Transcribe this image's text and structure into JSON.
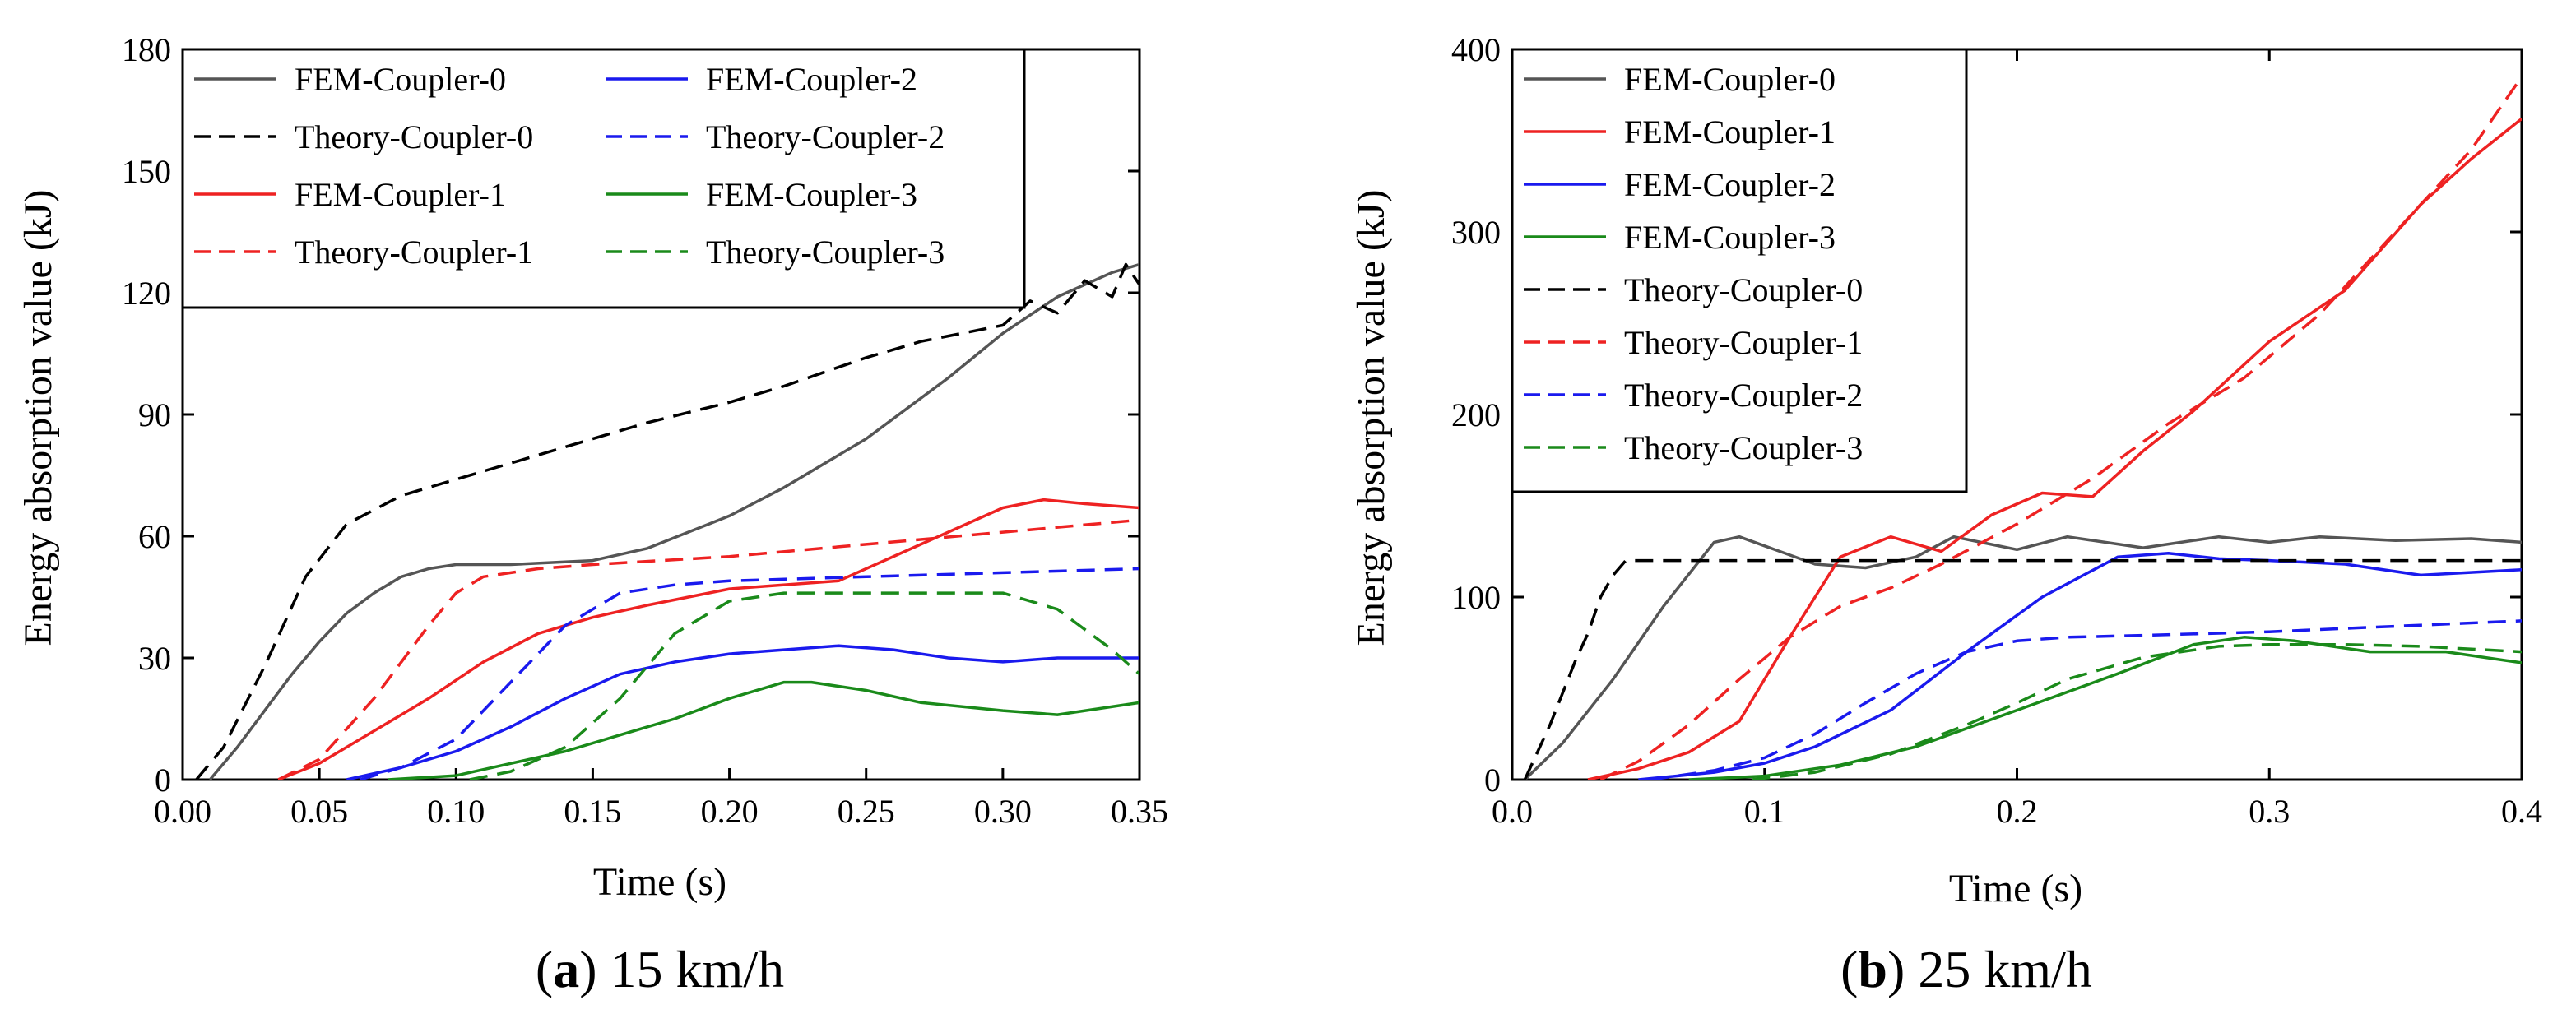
{
  "chart_data": [
    {
      "type": "line",
      "panel_label": "a",
      "caption": "15 km/h",
      "xlabel": "Time (s)",
      "ylabel": "Energy absorption value (kJ)",
      "xlim": [
        0.0,
        0.35
      ],
      "ylim": [
        0,
        180
      ],
      "xticks": [
        0.0,
        0.05,
        0.1,
        0.15,
        0.2,
        0.25,
        0.3,
        0.35
      ],
      "xtick_labels": [
        "0.00",
        "0.05",
        "0.10",
        "0.15",
        "0.20",
        "0.25",
        "0.30",
        "0.35"
      ],
      "yticks": [
        0,
        30,
        60,
        90,
        120,
        150,
        180
      ],
      "ytick_labels": [
        "0",
        "30",
        "60",
        "90",
        "120",
        "150",
        "180"
      ],
      "legend_position": "top-left",
      "legend_columns": 2,
      "series": [
        {
          "name": "FEM-Coupler-0",
          "color": "#555555",
          "dash": "solid",
          "x": [
            0.01,
            0.02,
            0.03,
            0.04,
            0.05,
            0.06,
            0.07,
            0.08,
            0.09,
            0.1,
            0.12,
            0.15,
            0.17,
            0.2,
            0.22,
            0.25,
            0.28,
            0.3,
            0.32,
            0.34,
            0.35
          ],
          "y": [
            0,
            8,
            17,
            26,
            34,
            41,
            46,
            50,
            52,
            53,
            53,
            54,
            57,
            65,
            72,
            84,
            99,
            110,
            119,
            125,
            127
          ]
        },
        {
          "name": "Theory-Coupler-0",
          "color": "#000000",
          "dash": "dashed",
          "x": [
            0.005,
            0.015,
            0.03,
            0.045,
            0.06,
            0.08,
            0.1,
            0.12,
            0.15,
            0.17,
            0.2,
            0.22,
            0.25,
            0.27,
            0.3,
            0.31,
            0.32,
            0.33,
            0.34,
            0.345,
            0.35
          ],
          "y": [
            0,
            8,
            28,
            50,
            63,
            70,
            74,
            78,
            84,
            88,
            93,
            97,
            104,
            108,
            112,
            118,
            115,
            123,
            119,
            127,
            122
          ]
        },
        {
          "name": "FEM-Coupler-1",
          "color": "#ee2222",
          "dash": "solid",
          "x": [
            0.035,
            0.05,
            0.07,
            0.09,
            0.11,
            0.13,
            0.15,
            0.17,
            0.2,
            0.24,
            0.27,
            0.3,
            0.315,
            0.33,
            0.35
          ],
          "y": [
            0,
            4,
            12,
            20,
            29,
            36,
            40,
            43,
            47,
            49,
            58,
            67,
            69,
            68,
            67
          ]
        },
        {
          "name": "Theory-Coupler-1",
          "color": "#ee2222",
          "dash": "dashed",
          "x": [
            0.035,
            0.05,
            0.07,
            0.09,
            0.1,
            0.11,
            0.13,
            0.15,
            0.2,
            0.25,
            0.3,
            0.35
          ],
          "y": [
            0,
            5,
            20,
            38,
            46,
            50,
            52,
            53,
            55,
            58,
            61,
            64
          ]
        },
        {
          "name": "FEM-Coupler-2",
          "color": "#1a1aee",
          "dash": "solid",
          "x": [
            0.06,
            0.08,
            0.1,
            0.12,
            0.14,
            0.16,
            0.18,
            0.2,
            0.22,
            0.24,
            0.26,
            0.28,
            0.3,
            0.32,
            0.35
          ],
          "y": [
            0,
            3,
            7,
            13,
            20,
            26,
            29,
            31,
            32,
            33,
            32,
            30,
            29,
            30,
            30
          ]
        },
        {
          "name": "Theory-Coupler-2",
          "color": "#1a1aee",
          "dash": "dashed",
          "x": [
            0.065,
            0.08,
            0.1,
            0.12,
            0.14,
            0.16,
            0.18,
            0.2,
            0.25,
            0.3,
            0.35
          ],
          "y": [
            0,
            3,
            10,
            24,
            38,
            46,
            48,
            49,
            50,
            51,
            52
          ]
        },
        {
          "name": "FEM-Coupler-3",
          "color": "#1a8a1a",
          "dash": "solid",
          "x": [
            0.075,
            0.1,
            0.12,
            0.14,
            0.16,
            0.18,
            0.2,
            0.22,
            0.23,
            0.25,
            0.27,
            0.3,
            0.32,
            0.35
          ],
          "y": [
            0,
            1,
            4,
            7,
            11,
            15,
            20,
            24,
            24,
            22,
            19,
            17,
            16,
            19
          ]
        },
        {
          "name": "Theory-Coupler-3",
          "color": "#1a8a1a",
          "dash": "dashed",
          "x": [
            0.105,
            0.12,
            0.14,
            0.16,
            0.18,
            0.2,
            0.22,
            0.25,
            0.28,
            0.3,
            0.32,
            0.34,
            0.35
          ],
          "y": [
            0,
            2,
            8,
            20,
            36,
            44,
            46,
            46,
            46,
            46,
            42,
            32,
            26
          ]
        }
      ]
    },
    {
      "type": "line",
      "panel_label": "b",
      "caption": "25 km/h",
      "xlabel": "Time (s)",
      "ylabel": "Energy absorption value (kJ)",
      "xlim": [
        0.0,
        0.4
      ],
      "ylim": [
        0,
        400
      ],
      "xticks": [
        0.0,
        0.1,
        0.2,
        0.3,
        0.4
      ],
      "xtick_labels": [
        "0.0",
        "0.1",
        "0.2",
        "0.3",
        "0.4"
      ],
      "yticks": [
        0,
        100,
        200,
        300,
        400
      ],
      "ytick_labels": [
        "0",
        "100",
        "200",
        "300",
        "400"
      ],
      "legend_position": "top-left",
      "legend_columns": 1,
      "series": [
        {
          "name": "FEM-Coupler-0",
          "color": "#555555",
          "dash": "solid",
          "x": [
            0.005,
            0.02,
            0.04,
            0.06,
            0.08,
            0.09,
            0.1,
            0.12,
            0.14,
            0.16,
            0.175,
            0.2,
            0.22,
            0.25,
            0.28,
            0.3,
            0.32,
            0.35,
            0.38,
            0.4
          ],
          "y": [
            0,
            20,
            55,
            95,
            130,
            133,
            128,
            118,
            116,
            122,
            133,
            126,
            133,
            127,
            133,
            130,
            133,
            131,
            132,
            130
          ]
        },
        {
          "name": "FEM-Coupler-1",
          "color": "#ee2222",
          "dash": "solid",
          "x": [
            0.03,
            0.05,
            0.07,
            0.09,
            0.11,
            0.13,
            0.15,
            0.17,
            0.19,
            0.21,
            0.23,
            0.25,
            0.27,
            0.3,
            0.33,
            0.36,
            0.38,
            0.4
          ],
          "y": [
            0,
            6,
            15,
            32,
            78,
            122,
            133,
            125,
            145,
            157,
            155,
            180,
            202,
            240,
            268,
            315,
            340,
            362
          ]
        },
        {
          "name": "FEM-Coupler-2",
          "color": "#1a1aee",
          "dash": "solid",
          "x": [
            0.05,
            0.08,
            0.1,
            0.12,
            0.15,
            0.18,
            0.21,
            0.24,
            0.26,
            0.28,
            0.3,
            0.33,
            0.36,
            0.4
          ],
          "y": [
            0,
            4,
            9,
            18,
            38,
            70,
            100,
            122,
            124,
            121,
            120,
            118,
            112,
            115
          ]
        },
        {
          "name": "FEM-Coupler-3",
          "color": "#1a8a1a",
          "dash": "solid",
          "x": [
            0.07,
            0.1,
            0.13,
            0.16,
            0.2,
            0.24,
            0.27,
            0.29,
            0.31,
            0.34,
            0.37,
            0.4
          ],
          "y": [
            0,
            2,
            8,
            18,
            38,
            58,
            74,
            78,
            76,
            70,
            70,
            64
          ]
        },
        {
          "name": "Theory-Coupler-0",
          "color": "#000000",
          "dash": "dashed",
          "x": [
            0.005,
            0.015,
            0.025,
            0.03,
            0.035,
            0.04,
            0.045,
            0.1,
            0.2,
            0.3,
            0.4
          ],
          "y": [
            0,
            30,
            65,
            80,
            100,
            112,
            120,
            120,
            120,
            120,
            120
          ]
        },
        {
          "name": "Theory-Coupler-1",
          "color": "#ee2222",
          "dash": "dashed",
          "x": [
            0.035,
            0.05,
            0.07,
            0.09,
            0.11,
            0.13,
            0.15,
            0.17,
            0.2,
            0.23,
            0.26,
            0.29,
            0.32,
            0.35,
            0.38,
            0.4
          ],
          "y": [
            0,
            10,
            30,
            55,
            78,
            95,
            105,
            118,
            140,
            165,
            195,
            220,
            255,
            300,
            345,
            385
          ]
        },
        {
          "name": "Theory-Coupler-2",
          "color": "#1a1aee",
          "dash": "dashed",
          "x": [
            0.055,
            0.08,
            0.1,
            0.12,
            0.14,
            0.16,
            0.18,
            0.2,
            0.22,
            0.25,
            0.3,
            0.35,
            0.4
          ],
          "y": [
            0,
            5,
            12,
            25,
            42,
            58,
            70,
            76,
            78,
            79,
            81,
            84,
            87
          ]
        },
        {
          "name": "Theory-Coupler-3",
          "color": "#1a8a1a",
          "dash": "dashed",
          "x": [
            0.095,
            0.12,
            0.15,
            0.18,
            0.2,
            0.22,
            0.25,
            0.28,
            0.3,
            0.33,
            0.36,
            0.4
          ],
          "y": [
            0,
            4,
            14,
            30,
            42,
            55,
            67,
            73,
            74,
            74,
            73,
            70
          ]
        }
      ]
    }
  ]
}
